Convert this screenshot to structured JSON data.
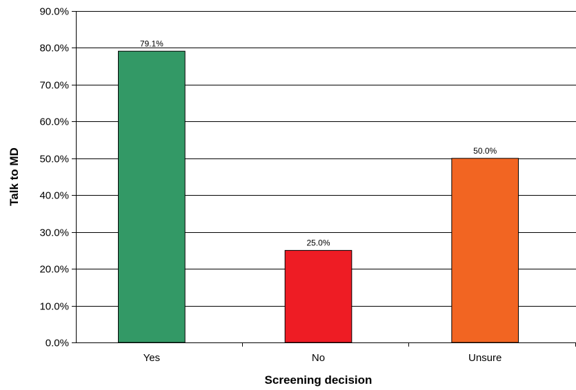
{
  "chart_data": {
    "type": "bar",
    "title": "",
    "xlabel": "Screening decision",
    "ylabel": "Talk to MD",
    "categories": [
      "Yes",
      "No",
      "Unsure"
    ],
    "values": [
      79.1,
      25.0,
      50.0
    ],
    "data_labels": [
      "79.1%",
      "25.0%",
      "50.0%"
    ],
    "bar_colors": [
      "#339966",
      "#ee1c24",
      "#f26522"
    ],
    "ylim": [
      0,
      90
    ],
    "y_ticks": [
      0,
      10,
      20,
      30,
      40,
      50,
      60,
      70,
      80,
      90
    ],
    "y_tick_labels": [
      "0.0%",
      "10.0%",
      "20.0%",
      "30.0%",
      "40.0%",
      "50.0%",
      "60.0%",
      "70.0%",
      "80.0%",
      "90.0%"
    ],
    "grid": true,
    "legend": "none"
  }
}
